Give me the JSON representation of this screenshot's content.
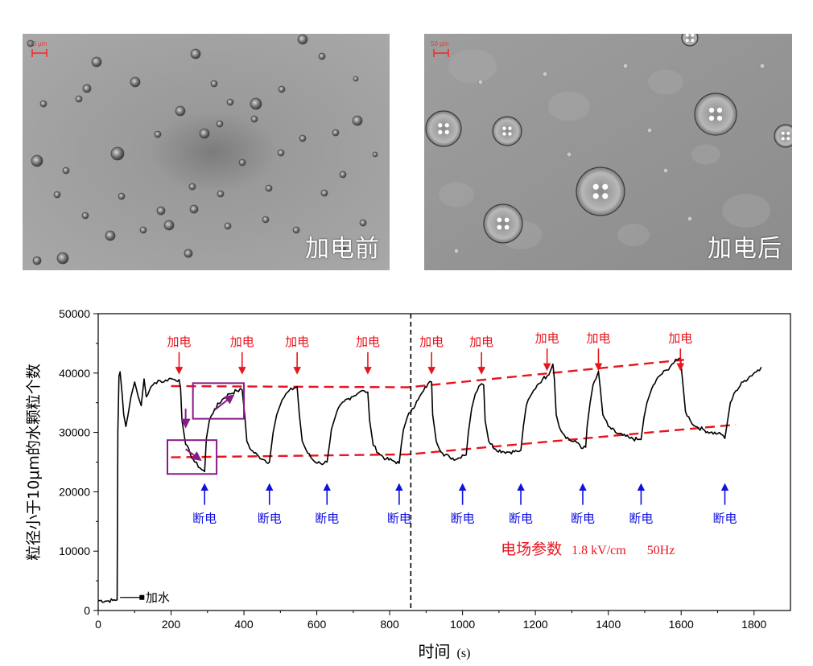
{
  "photos": {
    "left": {
      "label": "加电前",
      "scale": "50 μm"
    },
    "right": {
      "label": "加电后",
      "scale": "50 μm"
    }
  },
  "colors": {
    "annot_on": "#e8141e",
    "annot_off": "#1010e0",
    "box": "#8a1a8a",
    "line": "#000000"
  },
  "chart_data": {
    "type": "line",
    "title": "",
    "xlabel": "时间",
    "xlabel_unit": "(s)",
    "ylabel": "粒径小于10μm的水颗粒个数",
    "xlim": [
      0,
      1900
    ],
    "ylim": [
      0,
      50000
    ],
    "xticks": [
      0,
      200,
      400,
      600,
      800,
      1000,
      1200,
      1400,
      1600,
      1800
    ],
    "yticks": [
      0,
      10000,
      20000,
      30000,
      40000,
      50000
    ],
    "series": [
      {
        "name": "水颗粒个数",
        "points": [
          [
            0,
            1700
          ],
          [
            20,
            1600
          ],
          [
            40,
            1700
          ],
          [
            52,
            1800
          ],
          [
            54,
            30000
          ],
          [
            57,
            39500
          ],
          [
            60,
            40200
          ],
          [
            65,
            37000
          ],
          [
            70,
            33000
          ],
          [
            76,
            31000
          ],
          [
            82,
            33000
          ],
          [
            90,
            36000
          ],
          [
            100,
            38500
          ],
          [
            110,
            36000
          ],
          [
            118,
            34500
          ],
          [
            126,
            39000
          ],
          [
            132,
            36000
          ],
          [
            140,
            37000
          ],
          [
            150,
            38000
          ],
          [
            165,
            38800
          ],
          [
            180,
            38500
          ],
          [
            195,
            39100
          ],
          [
            210,
            38900
          ],
          [
            222,
            38900
          ],
          [
            226,
            37500
          ],
          [
            230,
            32000
          ],
          [
            240,
            28000
          ],
          [
            252,
            26500
          ],
          [
            265,
            25000
          ],
          [
            280,
            24000
          ],
          [
            292,
            23400
          ],
          [
            297,
            29000
          ],
          [
            305,
            32000
          ],
          [
            320,
            34000
          ],
          [
            340,
            35500
          ],
          [
            360,
            36500
          ],
          [
            380,
            37000
          ],
          [
            395,
            37200
          ],
          [
            402,
            33000
          ],
          [
            408,
            28500
          ],
          [
            420,
            27000
          ],
          [
            440,
            26000
          ],
          [
            458,
            25300
          ],
          [
            470,
            25000
          ],
          [
            476,
            28000
          ],
          [
            480,
            30000
          ],
          [
            490,
            33000
          ],
          [
            505,
            35500
          ],
          [
            520,
            36800
          ],
          [
            538,
            37500
          ],
          [
            546,
            37700
          ],
          [
            552,
            33000
          ],
          [
            560,
            28500
          ],
          [
            575,
            26500
          ],
          [
            592,
            25200
          ],
          [
            610,
            24800
          ],
          [
            628,
            25000
          ],
          [
            636,
            28500
          ],
          [
            640,
            30500
          ],
          [
            655,
            33500
          ],
          [
            675,
            35200
          ],
          [
            695,
            36000
          ],
          [
            715,
            36700
          ],
          [
            730,
            37000
          ],
          [
            740,
            36800
          ],
          [
            745,
            32000
          ],
          [
            755,
            27800
          ],
          [
            770,
            26500
          ],
          [
            790,
            25500
          ],
          [
            810,
            25200
          ],
          [
            826,
            24800
          ],
          [
            832,
            28000
          ],
          [
            838,
            30500
          ],
          [
            848,
            32500
          ],
          [
            862,
            34000
          ],
          [
            878,
            35500
          ],
          [
            893,
            37000
          ],
          [
            905,
            38200
          ],
          [
            915,
            38500
          ],
          [
            918,
            33000
          ],
          [
            928,
            28500
          ],
          [
            945,
            26500
          ],
          [
            965,
            25800
          ],
          [
            985,
            25500
          ],
          [
            1000,
            26200
          ],
          [
            1010,
            26200
          ],
          [
            1016,
            30000
          ],
          [
            1025,
            34000
          ],
          [
            1035,
            36500
          ],
          [
            1045,
            37800
          ],
          [
            1052,
            38200
          ],
          [
            1058,
            38000
          ],
          [
            1062,
            32000
          ],
          [
            1072,
            28500
          ],
          [
            1090,
            27200
          ],
          [
            1110,
            26800
          ],
          [
            1130,
            26700
          ],
          [
            1150,
            26800
          ],
          [
            1160,
            27000
          ],
          [
            1167,
            31000
          ],
          [
            1175,
            34500
          ],
          [
            1190,
            36500
          ],
          [
            1205,
            38000
          ],
          [
            1220,
            39000
          ],
          [
            1232,
            39500
          ],
          [
            1242,
            40500
          ],
          [
            1248,
            41500
          ],
          [
            1252,
            39000
          ],
          [
            1257,
            33000
          ],
          [
            1265,
            31000
          ],
          [
            1280,
            29500
          ],
          [
            1300,
            28500
          ],
          [
            1318,
            28200
          ],
          [
            1330,
            27300
          ],
          [
            1338,
            27500
          ],
          [
            1342,
            31000
          ],
          [
            1350,
            35000
          ],
          [
            1358,
            38000
          ],
          [
            1366,
            39000
          ],
          [
            1373,
            40300
          ],
          [
            1378,
            37500
          ],
          [
            1385,
            33000
          ],
          [
            1400,
            31000
          ],
          [
            1420,
            30000
          ],
          [
            1440,
            29500
          ],
          [
            1460,
            29000
          ],
          [
            1480,
            28800
          ],
          [
            1490,
            28800
          ],
          [
            1498,
            32500
          ],
          [
            1506,
            35000
          ],
          [
            1520,
            37500
          ],
          [
            1540,
            39500
          ],
          [
            1560,
            40500
          ],
          [
            1575,
            41500
          ],
          [
            1590,
            42200
          ],
          [
            1598,
            42500
          ],
          [
            1605,
            38000
          ],
          [
            1612,
            33500
          ],
          [
            1625,
            32000
          ],
          [
            1640,
            31000
          ],
          [
            1660,
            30500
          ],
          [
            1680,
            30000
          ],
          [
            1700,
            29800
          ],
          [
            1715,
            29500
          ],
          [
            1720,
            29000
          ],
          [
            1725,
            31000
          ],
          [
            1735,
            35000
          ],
          [
            1750,
            37000
          ],
          [
            1770,
            38500
          ],
          [
            1790,
            39500
          ],
          [
            1810,
            40500
          ],
          [
            1820,
            41000
          ]
        ]
      }
    ],
    "annotations": {
      "power_on_label": "加电",
      "power_off_label": "断电",
      "add_water_label": "加水",
      "power_on": [
        {
          "x": 222,
          "label_y": 43800
        },
        {
          "x": 395,
          "label_y": 43800
        },
        {
          "x": 546,
          "label_y": 43800
        },
        {
          "x": 740,
          "label_y": 43800
        },
        {
          "x": 915,
          "label_y": 43800
        },
        {
          "x": 1052,
          "label_y": 43800
        },
        {
          "x": 1232,
          "label_y": 44400
        },
        {
          "x": 1373,
          "label_y": 44400
        },
        {
          "x": 1598,
          "label_y": 44400
        }
      ],
      "power_off": [
        {
          "x": 292
        },
        {
          "x": 470
        },
        {
          "x": 628
        },
        {
          "x": 826
        },
        {
          "x": 1000
        },
        {
          "x": 1160
        },
        {
          "x": 1330
        },
        {
          "x": 1490
        },
        {
          "x": 1720
        }
      ],
      "add_water": {
        "x": 60,
        "y": 2200
      },
      "vline_x": 858,
      "trend_upper": [
        [
          200,
          37800
        ],
        [
          850,
          37600
        ],
        [
          1620,
          42300
        ]
      ],
      "trend_lower": [
        [
          200,
          25800
        ],
        [
          850,
          26300
        ],
        [
          1750,
          31300
        ]
      ],
      "field_label": "电场参数",
      "field_value": "1.8 kV/cm",
      "field_freq": "50Hz",
      "boxes": [
        {
          "x0": 190,
          "x1": 325,
          "y0": 23000,
          "y1": 28700
        },
        {
          "x0": 260,
          "x1": 400,
          "y0": 32300,
          "y1": 38300
        }
      ]
    }
  }
}
